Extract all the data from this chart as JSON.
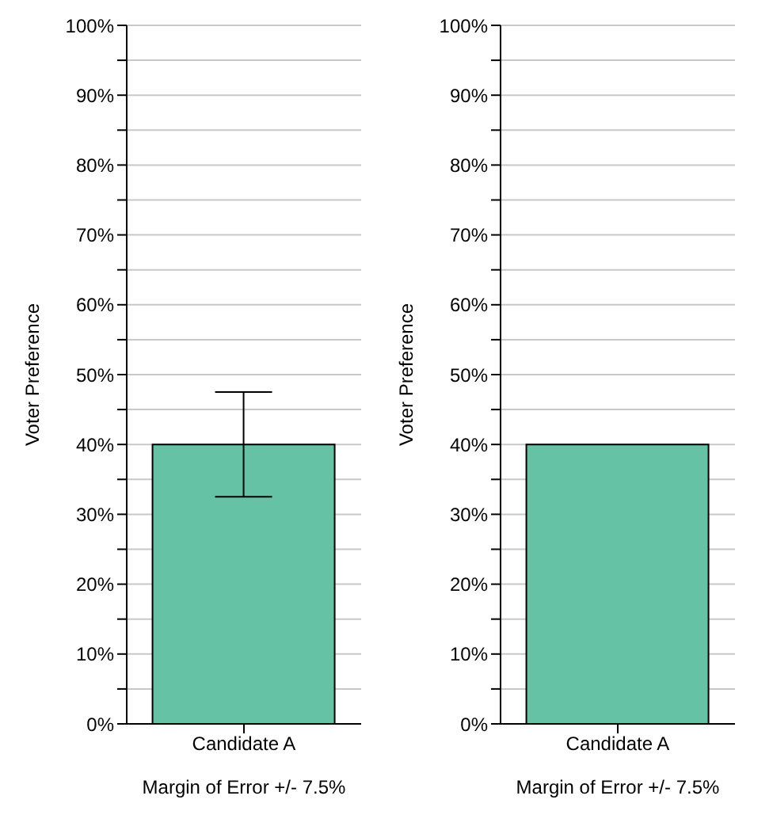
{
  "chart_data": [
    {
      "type": "bar",
      "ylabel": "Voter Preference",
      "xlabel": "Margin of Error +/- 7.5%",
      "categories": [
        "Candidate A"
      ],
      "values": [
        40
      ],
      "errors": [
        7.5
      ],
      "color": "#66c2a5",
      "ylim": [
        0,
        100
      ],
      "grid": "y",
      "yticks": [
        {
          "value": 0,
          "label": "0%"
        },
        {
          "value": 5,
          "label": null
        },
        {
          "value": 10,
          "label": "10%"
        },
        {
          "value": 15,
          "label": null
        },
        {
          "value": 20,
          "label": "20%"
        },
        {
          "value": 25,
          "label": null
        },
        {
          "value": 30,
          "label": "30%"
        },
        {
          "value": 35,
          "label": null
        },
        {
          "value": 40,
          "label": "40%"
        },
        {
          "value": 45,
          "label": null
        },
        {
          "value": 50,
          "label": "50%"
        },
        {
          "value": 55,
          "label": null
        },
        {
          "value": 60,
          "label": "60%"
        },
        {
          "value": 65,
          "label": null
        },
        {
          "value": 70,
          "label": "70%"
        },
        {
          "value": 75,
          "label": null
        },
        {
          "value": 80,
          "label": "80%"
        },
        {
          "value": 85,
          "label": null
        },
        {
          "value": 90,
          "label": "90%"
        },
        {
          "value": 95,
          "label": null
        },
        {
          "value": 100,
          "label": "100%"
        }
      ]
    },
    {
      "type": "bar",
      "ylabel": "Voter Preference",
      "xlabel": "Margin of Error +/- 7.5%",
      "categories": [
        "Candidate A"
      ],
      "values": [
        40
      ],
      "color": "#66c2a5",
      "ylim": [
        0,
        100
      ],
      "grid": "y",
      "yticks": [
        {
          "value": 0,
          "label": "0%"
        },
        {
          "value": 5,
          "label": null
        },
        {
          "value": 10,
          "label": "10%"
        },
        {
          "value": 15,
          "label": null
        },
        {
          "value": 20,
          "label": "20%"
        },
        {
          "value": 25,
          "label": null
        },
        {
          "value": 30,
          "label": "30%"
        },
        {
          "value": 35,
          "label": null
        },
        {
          "value": 40,
          "label": "40%"
        },
        {
          "value": 45,
          "label": null
        },
        {
          "value": 50,
          "label": "50%"
        },
        {
          "value": 55,
          "label": null
        },
        {
          "value": 60,
          "label": "60%"
        },
        {
          "value": 65,
          "label": null
        },
        {
          "value": 70,
          "label": "70%"
        },
        {
          "value": 75,
          "label": null
        },
        {
          "value": 80,
          "label": "80%"
        },
        {
          "value": 85,
          "label": null
        },
        {
          "value": 90,
          "label": "90%"
        },
        {
          "value": 95,
          "label": null
        },
        {
          "value": 100,
          "label": "100%"
        }
      ]
    }
  ]
}
